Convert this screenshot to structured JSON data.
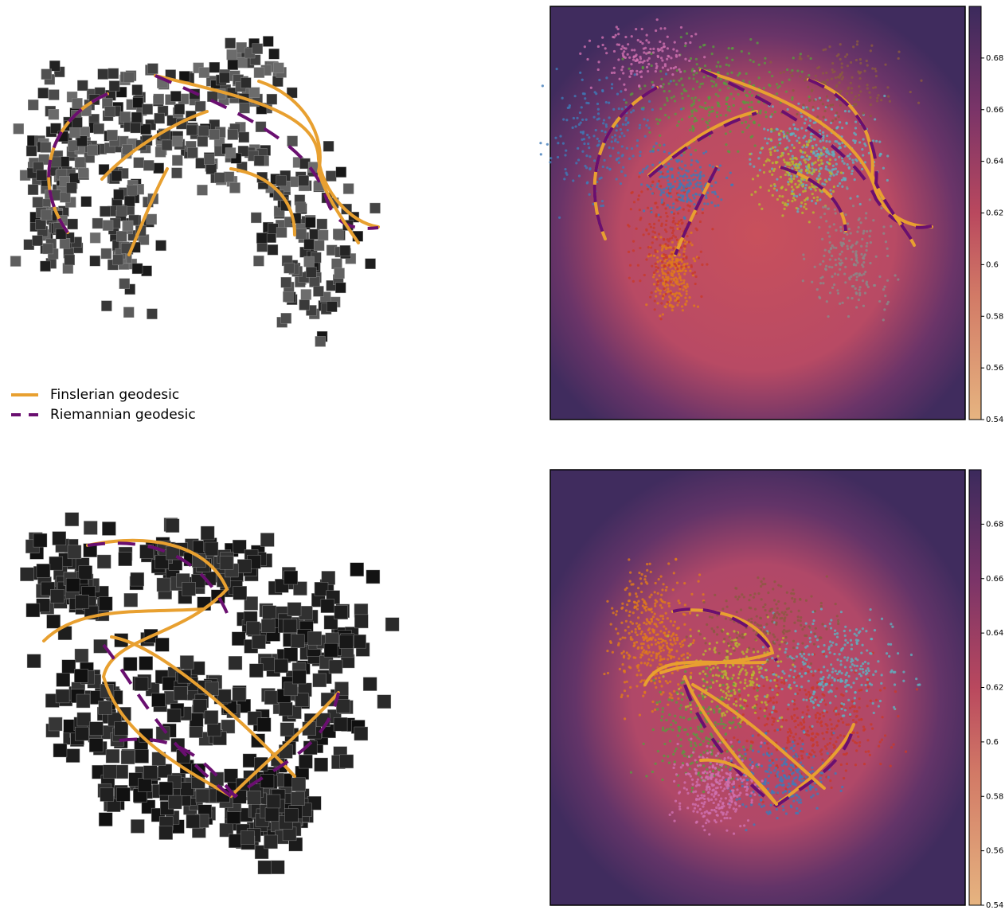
{
  "legend": [
    {
      "label": "Finslerian geodesic",
      "color": "#e8a030",
      "style": "solid"
    },
    {
      "label": "Riemannian geodesic",
      "color": "#6a0f70",
      "style": "dashed"
    }
  ],
  "chart_data": [
    {
      "type": "colorbar",
      "ylim": [
        0.54,
        0.7
      ],
      "yticks": [
        0.54,
        0.56,
        0.58,
        0.6,
        0.62,
        0.64,
        0.66,
        0.68
      ]
    },
    {
      "type": "colorbar",
      "ylim": [
        0.54,
        0.7
      ],
      "yticks": [
        0.54,
        0.56,
        0.58,
        0.6,
        0.62,
        0.64,
        0.66,
        0.68
      ]
    }
  ]
}
